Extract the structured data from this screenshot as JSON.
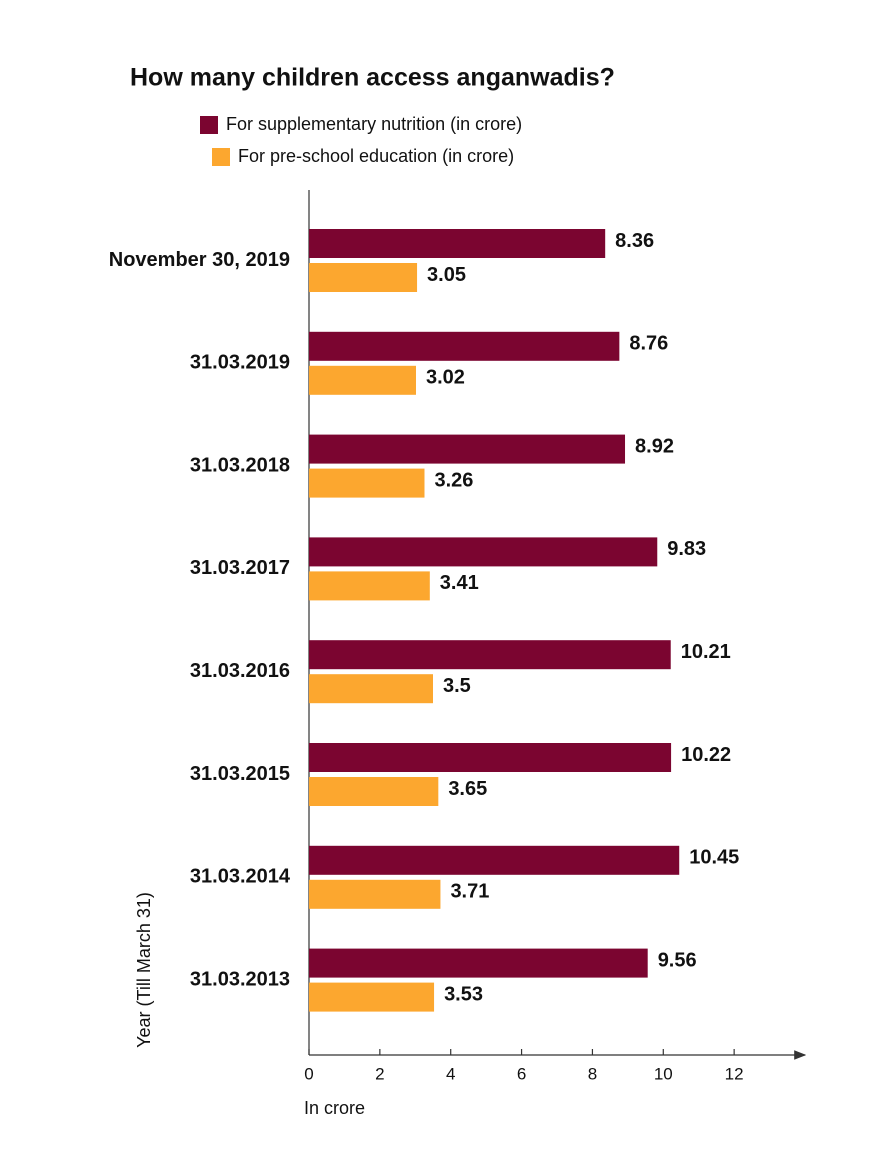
{
  "chart_data": {
    "type": "hbar",
    "title": "How many children access anganwadis?",
    "categories": [
      "November 30, 2019",
      "31.03.2019",
      "31.03.2018",
      "31.03.2017",
      "31.03.2016",
      "31.03.2015",
      "31.03.2014",
      "31.03.2013"
    ],
    "series": [
      {
        "name": "For supplementary nutrition (in crore)",
        "color": "#7b0530",
        "values": [
          8.36,
          8.76,
          8.92,
          9.83,
          10.21,
          10.22,
          10.45,
          9.56
        ]
      },
      {
        "name": "For pre-school education (in crore)",
        "color": "#fca72f",
        "values": [
          3.05,
          3.02,
          3.26,
          3.41,
          3.5,
          3.65,
          3.71,
          3.53
        ]
      }
    ],
    "xlim": [
      0,
      14
    ],
    "xticks": [
      0,
      2,
      4,
      6,
      8,
      10,
      12
    ],
    "x_label": "In crore",
    "y_label": "Year (Till March 31)"
  }
}
